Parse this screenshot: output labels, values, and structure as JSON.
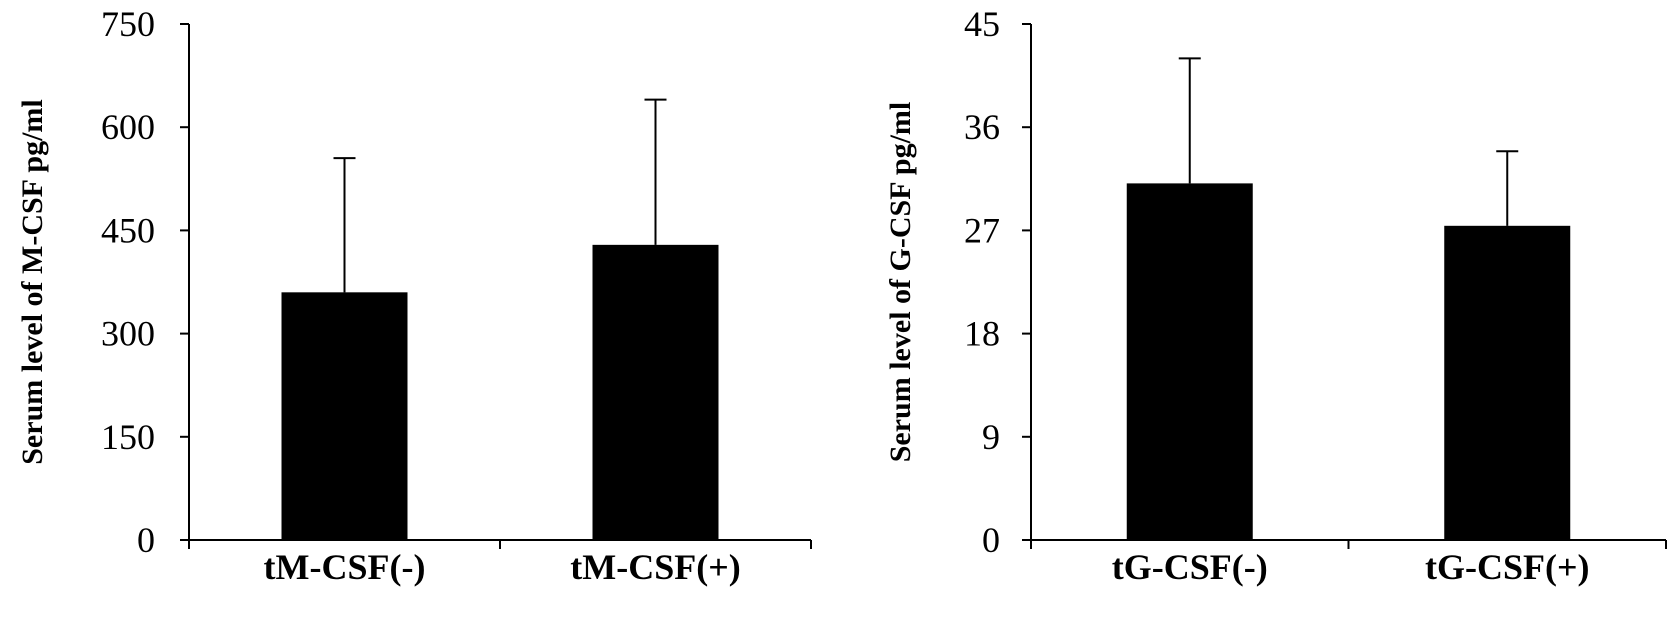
{
  "chart_data": [
    {
      "type": "bar",
      "categories": [
        "tM-CSF(-)",
        "tM-CSF(+)"
      ],
      "values": [
        360,
        429
      ],
      "error_upper": [
        555,
        640
      ],
      "title": "",
      "xlabel": "",
      "ylabel": "Serum level of M-CSF pg/ml",
      "ylim": [
        0,
        750
      ],
      "yticks": [
        "0",
        "150",
        "300",
        "450",
        "600",
        "750"
      ],
      "grid": false,
      "bar_color": "#000000"
    },
    {
      "type": "bar",
      "categories": [
        "tG-CSF(-)",
        "tG-CSF(+)"
      ],
      "values": [
        31.1,
        27.4
      ],
      "error_upper": [
        42.0,
        33.9
      ],
      "title": "",
      "xlabel": "",
      "ylabel": "Serum level of G-CSF pg/ml",
      "ylim": [
        0,
        45
      ],
      "yticks": [
        "0",
        "9",
        "18",
        "27",
        "36",
        "45"
      ],
      "grid": false,
      "bar_color": "#000000"
    }
  ]
}
